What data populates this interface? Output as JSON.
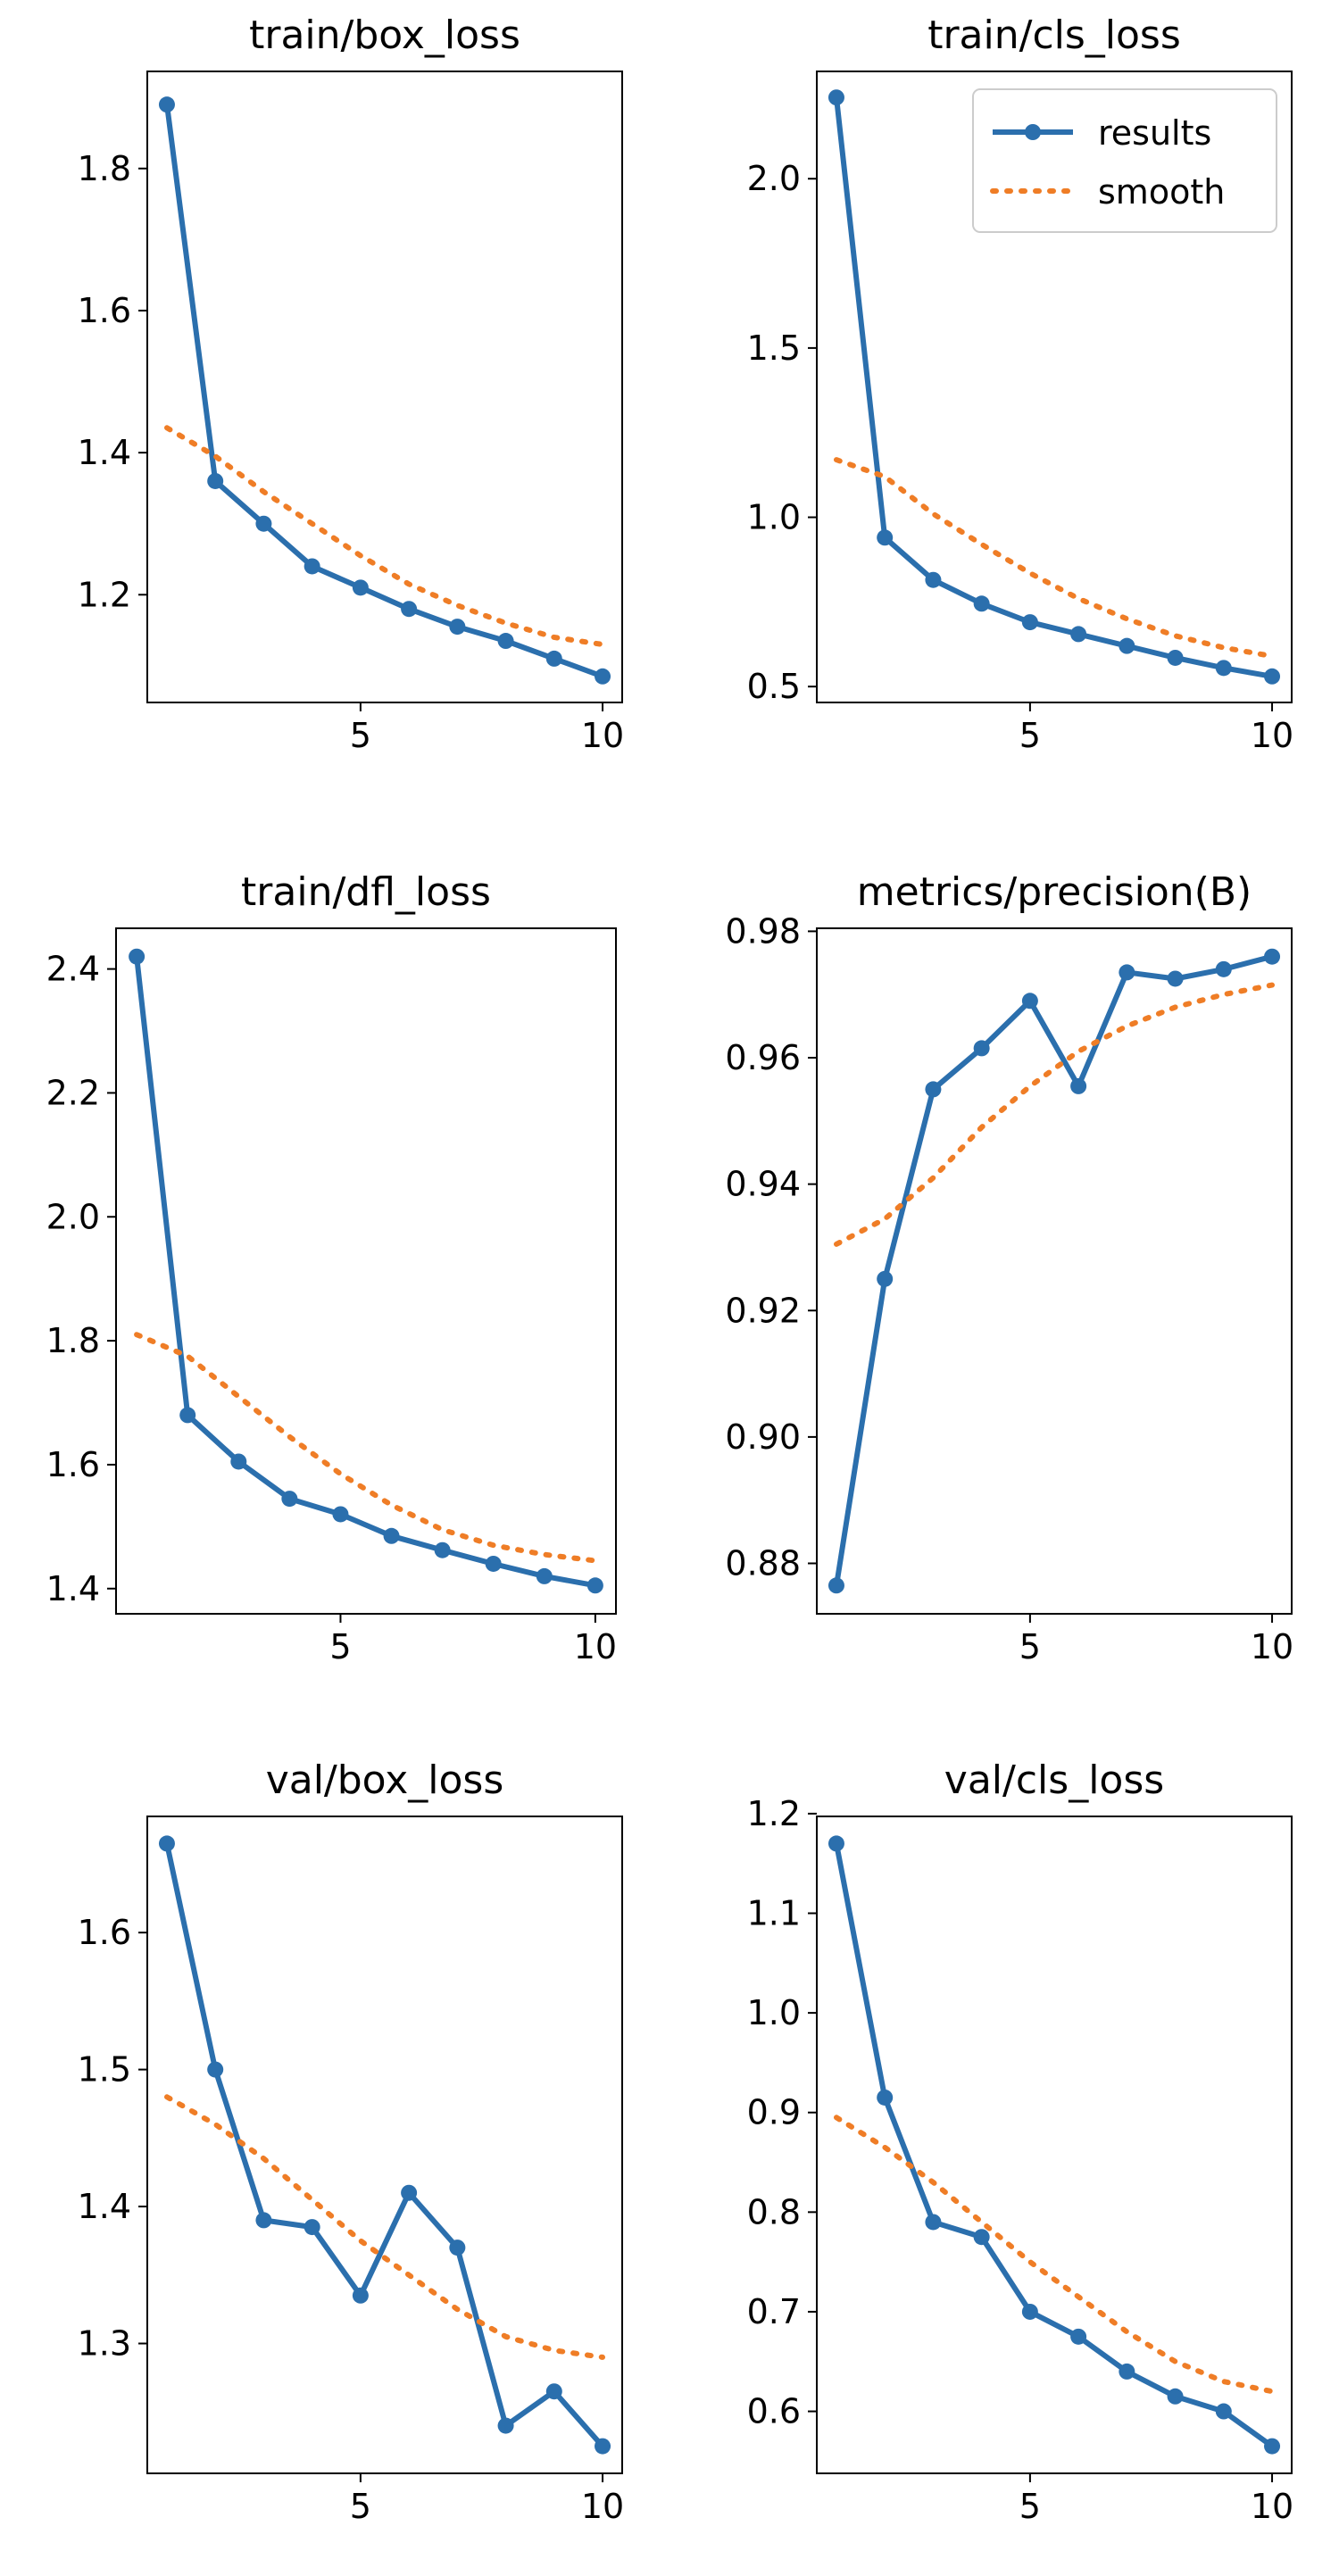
{
  "colors": {
    "results": "#2b6fad",
    "smooth": "#ef7d26"
  },
  "legend": {
    "results_label": "results",
    "smooth_label": "smooth",
    "placement": "top-right"
  },
  "chart_data": [
    {
      "type": "line",
      "title": "train/box_loss",
      "x": [
        1,
        2,
        3,
        4,
        5,
        6,
        7,
        8,
        9,
        10
      ],
      "xticks": [
        5,
        10
      ],
      "ylim": [
        1.085,
        1.9
      ],
      "yticks": [
        1.2,
        1.4,
        1.6,
        1.8
      ],
      "ytick_labels": [
        "1.2",
        "1.4",
        "1.6",
        "1.8"
      ],
      "series": [
        {
          "name": "results",
          "values": [
            1.89,
            1.36,
            1.3,
            1.24,
            1.21,
            1.18,
            1.155,
            1.135,
            1.11,
            1.085
          ]
        },
        {
          "name": "smooth",
          "values": [
            1.435,
            1.395,
            1.345,
            1.3,
            1.255,
            1.215,
            1.185,
            1.16,
            1.14,
            1.13
          ]
        }
      ]
    },
    {
      "type": "line",
      "title": "train/cls_loss",
      "x": [
        1,
        2,
        3,
        4,
        5,
        6,
        7,
        8,
        9,
        10
      ],
      "xticks": [
        5,
        10
      ],
      "ylim": [
        0.53,
        2.24
      ],
      "yticks": [
        0.5,
        1.0,
        1.5,
        2.0
      ],
      "ytick_labels": [
        "0.5",
        "1.0",
        "1.5",
        "2.0"
      ],
      "legend": true,
      "series": [
        {
          "name": "results",
          "values": [
            2.24,
            0.94,
            0.815,
            0.745,
            0.69,
            0.655,
            0.62,
            0.585,
            0.555,
            0.53
          ]
        },
        {
          "name": "smooth",
          "values": [
            1.17,
            1.12,
            1.01,
            0.92,
            0.835,
            0.76,
            0.7,
            0.65,
            0.615,
            0.59
          ]
        }
      ]
    },
    {
      "type": "line",
      "title": "train/dfl_loss",
      "x": [
        1,
        2,
        3,
        4,
        5,
        6,
        7,
        8,
        9,
        10
      ],
      "xticks": [
        5,
        10
      ],
      "ylim": [
        1.405,
        2.42
      ],
      "yticks": [
        1.4,
        1.6,
        1.8,
        2.0,
        2.2,
        2.4
      ],
      "ytick_labels": [
        "1.4",
        "1.6",
        "1.8",
        "2.0",
        "2.2",
        "2.4"
      ],
      "series": [
        {
          "name": "results",
          "values": [
            2.42,
            1.68,
            1.605,
            1.545,
            1.52,
            1.485,
            1.462,
            1.44,
            1.42,
            1.405
          ]
        },
        {
          "name": "smooth",
          "values": [
            1.81,
            1.775,
            1.71,
            1.645,
            1.585,
            1.535,
            1.495,
            1.47,
            1.455,
            1.445
          ]
        }
      ]
    },
    {
      "type": "line",
      "title": "metrics/precision(B)",
      "x": [
        1,
        2,
        3,
        4,
        5,
        6,
        7,
        8,
        9,
        10
      ],
      "xticks": [
        5,
        10
      ],
      "ylim": [
        0.8765,
        0.976
      ],
      "yticks": [
        0.88,
        0.9,
        0.92,
        0.94,
        0.96,
        0.98
      ],
      "ytick_labels": [
        "0.88",
        "0.90",
        "0.92",
        "0.94",
        "0.96",
        "0.98"
      ],
      "series": [
        {
          "name": "results",
          "values": [
            0.8765,
            0.925,
            0.955,
            0.9615,
            0.969,
            0.9555,
            0.9735,
            0.9725,
            0.974,
            0.976
          ]
        },
        {
          "name": "smooth",
          "values": [
            0.9305,
            0.9345,
            0.941,
            0.949,
            0.9555,
            0.961,
            0.965,
            0.968,
            0.97,
            0.9715
          ]
        }
      ]
    },
    {
      "type": "line",
      "title": "val/box_loss",
      "x": [
        1,
        2,
        3,
        4,
        5,
        6,
        7,
        8,
        9,
        10
      ],
      "xticks": [
        5,
        10
      ],
      "ylim": [
        1.225,
        1.665
      ],
      "yticks": [
        1.3,
        1.4,
        1.5,
        1.6
      ],
      "ytick_labels": [
        "1.3",
        "1.4",
        "1.5",
        "1.6"
      ],
      "series": [
        {
          "name": "results",
          "values": [
            1.665,
            1.5,
            1.39,
            1.385,
            1.335,
            1.41,
            1.37,
            1.24,
            1.265,
            1.225
          ]
        },
        {
          "name": "smooth",
          "values": [
            1.48,
            1.46,
            1.435,
            1.405,
            1.375,
            1.35,
            1.325,
            1.305,
            1.295,
            1.29
          ]
        }
      ]
    },
    {
      "type": "line",
      "title": "val/cls_loss",
      "x": [
        1,
        2,
        3,
        4,
        5,
        6,
        7,
        8,
        9,
        10
      ],
      "xticks": [
        5,
        10
      ],
      "ylim": [
        0.565,
        1.17
      ],
      "yticks": [
        0.6,
        0.7,
        0.8,
        0.9,
        1.0,
        1.1,
        1.2
      ],
      "ytick_labels": [
        "0.6",
        "0.7",
        "0.8",
        "0.9",
        "1.0",
        "1.1",
        "1.2"
      ],
      "series": [
        {
          "name": "results",
          "values": [
            1.17,
            0.915,
            0.79,
            0.775,
            0.7,
            0.675,
            0.64,
            0.615,
            0.6,
            0.565
          ]
        },
        {
          "name": "smooth",
          "values": [
            0.895,
            0.865,
            0.83,
            0.79,
            0.75,
            0.715,
            0.68,
            0.65,
            0.63,
            0.62
          ]
        }
      ]
    }
  ]
}
